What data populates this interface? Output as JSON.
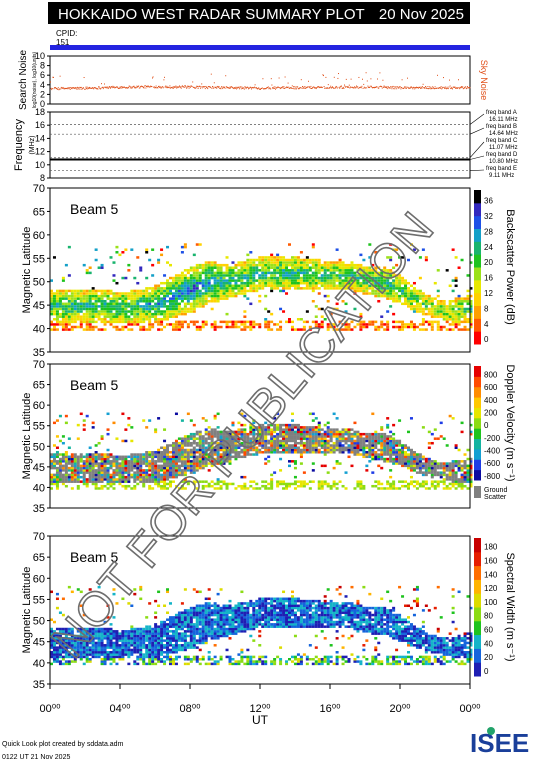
{
  "header": {
    "title": "HOKKAIDO WEST RADAR SUMMARY PLOT",
    "date": "20 Nov 2025",
    "cpid_label": "CPID:",
    "cpid_value": "151"
  },
  "footer": {
    "credit": "Quick Look plot created by sddata.adm",
    "timestamp": "0122 UT 21 Nov 2025",
    "logo_text": "ISEE"
  },
  "watermark": "NOT FOR PUBLICATION",
  "colors": {
    "cpid_bar": "#2323e0",
    "noise": "#e0501a",
    "ground_scatter": "#808080",
    "power_scale": [
      "#ff0000",
      "#ff5a00",
      "#ffa000",
      "#ffd200",
      "#e8e800",
      "#9be11a",
      "#1ec31e",
      "#19b46e",
      "#14a0c8",
      "#1e50e6",
      "#3228be",
      "#000000"
    ],
    "velocity_scale": [
      "#0a0aa0",
      "#1e3ce6",
      "#14a0d2",
      "#14b4a0",
      "#1ec31e",
      "#8cdc14",
      "#e6e600",
      "#ffc800",
      "#ff8c00",
      "#ff4b00",
      "#e60000"
    ],
    "width_scale": [
      "#1e1eb4",
      "#1464dc",
      "#14b4c8",
      "#1ec31e",
      "#8cdc14",
      "#dcdc00",
      "#ffb400",
      "#ff6e00",
      "#e61e00",
      "#c80000"
    ]
  },
  "chart_data": [
    {
      "type": "scatter",
      "name": "noise-panel",
      "ylabel": "Search Noise",
      "ylabel2": "log10(noise), log10(units)",
      "right_label": "Sky Noise",
      "ylim": [
        0,
        10
      ],
      "yticks": [
        0,
        2,
        4,
        6,
        8,
        10
      ],
      "x": [
        0,
        2,
        4,
        6,
        8,
        10,
        12,
        14,
        16,
        18,
        20,
        22,
        24
      ],
      "values": [
        3.3,
        3.4,
        3.6,
        3.7,
        3.6,
        3.5,
        3.4,
        3.5,
        3.6,
        3.6,
        3.5,
        3.5,
        3.5
      ]
    },
    {
      "type": "line",
      "name": "frequency-panel",
      "ylabel": "Frequency",
      "ylabel2": "(MHz)",
      "ylim": [
        8,
        18
      ],
      "yticks": [
        8,
        10,
        12,
        14,
        16,
        18
      ],
      "bands": [
        {
          "name": "freq band A",
          "value_label": "16.11 MHz",
          "value": 16.11
        },
        {
          "name": "freq band B",
          "value_label": "14.64 MHz",
          "value": 14.64
        },
        {
          "name": "freq band C",
          "value_label": "11.07 MHz",
          "value": 11.07
        },
        {
          "name": "freq band D",
          "value_label": "10.80 MHz",
          "value": 10.8
        },
        {
          "name": "freq band E",
          "value_label": "9.11 MHz",
          "value": 9.11
        }
      ],
      "operating_frequency": 10.8
    },
    {
      "type": "heatmap",
      "name": "power-panel",
      "beam_label": "Beam  5",
      "ylabel": "Magnetic Latitude",
      "ylim": [
        35,
        70
      ],
      "yticks": [
        35,
        40,
        45,
        50,
        55,
        60,
        65,
        70
      ],
      "colorbar_label": "Backscatter Power (dB)",
      "colorbar_ticks": [
        "0",
        "4",
        "8",
        "12",
        "16",
        "20",
        "24",
        "28",
        "32",
        "36"
      ],
      "scatter_boundary": {
        "x": [
          0,
          1,
          2,
          3,
          4,
          5,
          6,
          7,
          8,
          9,
          10,
          11,
          12,
          13,
          14,
          15,
          16,
          17,
          18,
          19,
          20,
          21,
          22,
          23,
          24
        ],
        "upper": [
          48,
          48,
          48,
          48,
          47.5,
          48,
          49,
          51,
          53,
          54,
          53.5,
          54,
          55,
          55,
          55,
          54.5,
          54,
          54,
          53,
          53,
          51,
          48,
          46,
          46,
          47
        ],
        "lower": [
          41,
          41,
          41,
          41,
          41,
          41,
          41,
          42,
          43,
          45,
          46,
          47,
          48,
          48,
          48,
          48,
          48,
          48,
          47,
          46,
          45,
          43,
          42,
          41,
          41
        ]
      }
    },
    {
      "type": "heatmap",
      "name": "velocity-panel",
      "beam_label": "Beam  5",
      "ylabel": "Magnetic Latitude",
      "ylim": [
        35,
        70
      ],
      "yticks": [
        35,
        40,
        45,
        50,
        55,
        60,
        65,
        70
      ],
      "colorbar_label": "Doppler Velocity (m s⁻¹)",
      "colorbar_ticks": [
        "-800",
        "-600",
        "-400",
        "-200",
        "0",
        "200",
        "400",
        "600",
        "800"
      ],
      "ground_label": "Ground",
      "ground_label2": "Scatter"
    },
    {
      "type": "heatmap",
      "name": "width-panel",
      "beam_label": "Beam  5",
      "ylabel": "Magnetic Latitude",
      "ylim": [
        35,
        70
      ],
      "yticks": [
        35,
        40,
        45,
        50,
        55,
        60,
        65,
        70
      ],
      "xlabel": "UT",
      "xlim": [
        0,
        24
      ],
      "xticks": [
        "00⁰⁰",
        "04⁰⁰",
        "08⁰⁰",
        "12⁰⁰",
        "16⁰⁰",
        "20⁰⁰",
        "00⁰⁰"
      ],
      "colorbar_label": "Spectral Width (m s⁻¹)",
      "colorbar_ticks": [
        "0",
        "20",
        "40",
        "60",
        "80",
        "100",
        "120",
        "140",
        "160",
        "180"
      ]
    }
  ]
}
